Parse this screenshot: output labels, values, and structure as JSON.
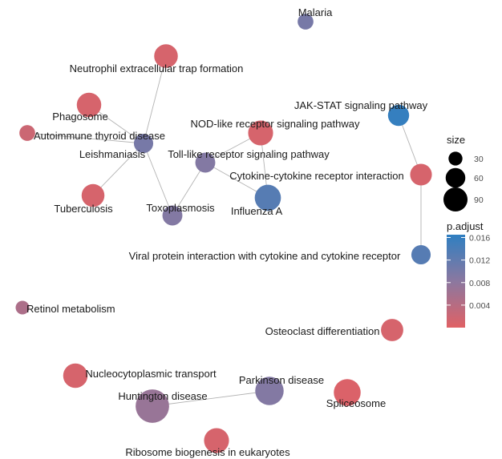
{
  "nodes": [
    {
      "id": "malaria",
      "label": "Malaria",
      "size": 20,
      "p": 0.01
    },
    {
      "id": "neutrophil",
      "label": "Neutrophil extracellular trap formation",
      "size": 45,
      "p": 0.001
    },
    {
      "id": "phagosome",
      "label": "Phagosome",
      "size": 48,
      "p": 0.001
    },
    {
      "id": "autoimmune",
      "label": "Autoimmune thyroid disease",
      "size": 20,
      "p": 0.002
    },
    {
      "id": "leishmaniasis",
      "label": "Leishmaniasis",
      "size": 30,
      "p": 0.01
    },
    {
      "id": "nod",
      "label": "NOD-like receptor signaling pathway",
      "size": 50,
      "p": 0.001
    },
    {
      "id": "tlr",
      "label": "Toll-like receptor signaling pathway",
      "size": 32,
      "p": 0.009
    },
    {
      "id": "jakstat",
      "label": "JAK-STAT signaling pathway",
      "size": 36,
      "p": 0.016
    },
    {
      "id": "cytokine",
      "label": "Cytokine-cytokine receptor interaction",
      "size": 38,
      "p": 0.001
    },
    {
      "id": "tuberculosis",
      "label": "Tuberculosis",
      "size": 42,
      "p": 0.001
    },
    {
      "id": "toxoplasmosis",
      "label": "Toxoplasmosis",
      "size": 32,
      "p": 0.009
    },
    {
      "id": "influenza",
      "label": "Influenza A",
      "size": 55,
      "p": 0.013
    },
    {
      "id": "viral",
      "label": "Viral protein interaction with cytokine and cytokine receptor",
      "size": 30,
      "p": 0.013
    },
    {
      "id": "retinol",
      "label": "Retinol metabolism",
      "size": 15,
      "p": 0.005
    },
    {
      "id": "osteoclast",
      "label": "Osteoclast differentiation",
      "size": 40,
      "p": 0.001
    },
    {
      "id": "nucleo",
      "label": "Nucleocytoplasmic transport",
      "size": 48,
      "p": 0.001
    },
    {
      "id": "parkinson",
      "label": "Parkinson disease",
      "size": 65,
      "p": 0.009
    },
    {
      "id": "huntington",
      "label": "Huntington disease",
      "size": 90,
      "p": 0.007
    },
    {
      "id": "spliceosome",
      "label": "Spliceosome",
      "size": 58,
      "p": 0.0005
    },
    {
      "id": "ribosome",
      "label": "Ribosome biogenesis in eukaryotes",
      "size": 50,
      "p": 0.001
    }
  ],
  "edges": [
    [
      "neutrophil",
      "leishmaniasis"
    ],
    [
      "phagosome",
      "leishmaniasis"
    ],
    [
      "autoimmune",
      "leishmaniasis"
    ],
    [
      "leishmaniasis",
      "tuberculosis"
    ],
    [
      "leishmaniasis",
      "toxoplasmosis"
    ],
    [
      "toxoplasmosis",
      "tlr"
    ],
    [
      "tlr",
      "nod"
    ],
    [
      "tlr",
      "influenza"
    ],
    [
      "nod",
      "influenza"
    ],
    [
      "jakstat",
      "cytokine"
    ],
    [
      "cytokine",
      "viral"
    ],
    [
      "huntington",
      "parkinson"
    ]
  ],
  "legend": {
    "size_title": "size",
    "size_items": [
      {
        "label": "30",
        "size": 30
      },
      {
        "label": "60",
        "size": 60
      },
      {
        "label": "90",
        "size": 90
      }
    ],
    "color_title": "p.adjust",
    "color_ticks": [
      {
        "label": "0.016",
        "value": 0.016
      },
      {
        "label": "0.012",
        "value": 0.012
      },
      {
        "label": "0.008",
        "value": 0.008
      },
      {
        "label": "0.004",
        "value": 0.004
      }
    ],
    "color_range": [
      0.0,
      0.0165
    ],
    "color_low": "#e06165",
    "color_mid": "#8b78a0",
    "color_high": "#2f7fc1"
  }
}
